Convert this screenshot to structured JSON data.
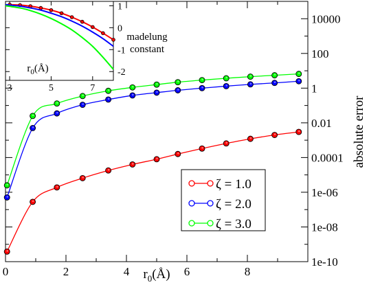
{
  "chart_data": [
    {
      "type": "line",
      "title": "",
      "xlabel": "r0(Å)",
      "xlabel_main": "r",
      "xlabel_sub": "0",
      "xlabel_rest": "(Å)",
      "ylabel": "absolute error",
      "yscale": "log",
      "xlim": [
        0,
        10
      ],
      "ylim": [
        1e-10,
        100000
      ],
      "xticks": [
        0,
        2,
        4,
        6,
        8
      ],
      "xtick_labels": [
        "0",
        "2",
        "4",
        "6",
        "8"
      ],
      "yticks": [
        1e-10,
        1e-08,
        1e-06,
        0.0001,
        0.01,
        1,
        100,
        10000
      ],
      "ytick_labels": [
        "1e-10",
        "1e-08",
        "1e-06",
        "0.0001",
        "0.01",
        "1",
        "100",
        "10000"
      ],
      "grid": false,
      "legend_position": "lower-right",
      "x": [
        0.05,
        0.9,
        1.7,
        2.55,
        3.4,
        4.2,
        5.0,
        5.7,
        6.5,
        7.3,
        8.1,
        8.9,
        9.7
      ],
      "series": [
        {
          "name": "ζ = 1.0",
          "color": "#ff0000",
          "values": [
            3.8e-10,
            2.8e-07,
            1.9e-06,
            6.5e-06,
            1.8e-05,
            4e-05,
            8e-05,
            0.00016,
            0.00033,
            0.00065,
            0.0012,
            0.002,
            0.003
          ]
        },
        {
          "name": "ζ = 2.0",
          "color": "#0000ff",
          "values": [
            5e-07,
            0.005,
            0.035,
            0.11,
            0.22,
            0.38,
            0.55,
            0.75,
            1.0,
            1.3,
            1.65,
            2.0,
            2.5
          ]
        },
        {
          "name": "ζ = 3.0",
          "color": "#00ff00",
          "values": [
            2.5e-06,
            0.025,
            0.13,
            0.35,
            0.7,
            1.1,
            1.6,
            2.2,
            2.9,
            3.7,
            4.6,
            5.5,
            6.6
          ]
        }
      ]
    },
    {
      "type": "line",
      "title": "",
      "xlabel": "r0(Å)",
      "xlabel_main": "r",
      "xlabel_sub": "0",
      "xlabel_rest": "(Å)",
      "ylabel": "madelung constant",
      "ylabel_lines": [
        "madelung",
        "constant"
      ],
      "xlim": [
        2.8,
        8.0
      ],
      "ylim": [
        -2.4,
        1.2
      ],
      "xticks": [
        3,
        5,
        7
      ],
      "xtick_labels": [
        "3",
        "5",
        "7"
      ],
      "yticks": [
        1,
        0,
        -1,
        -2
      ],
      "ytick_labels": [
        "1",
        "0",
        "-1",
        "-2"
      ],
      "grid": false,
      "marked_series": "ζ = 1.0",
      "series": [
        {
          "name": "ζ = 1.0",
          "color": "#ff0000",
          "x": [
            3.0,
            3.5,
            4.0,
            4.5,
            5.0,
            5.5,
            6.0,
            6.5,
            7.0,
            7.5,
            8.0
          ],
          "values": [
            1.05,
            1.03,
            0.98,
            0.9,
            0.8,
            0.66,
            0.48,
            0.27,
            0.03,
            -0.25,
            -0.55
          ]
        },
        {
          "name": "ζ = 2.0",
          "color": "#0000ff",
          "x": [
            2.8,
            3.5,
            4.0,
            4.5,
            5.0,
            5.5,
            6.0,
            6.5,
            7.0,
            7.5,
            8.0
          ],
          "values": [
            1.05,
            0.98,
            0.9,
            0.8,
            0.66,
            0.5,
            0.3,
            0.07,
            -0.2,
            -0.5,
            -0.85
          ]
        },
        {
          "name": "ζ = 3.0",
          "color": "#00ff00",
          "x": [
            2.8,
            3.5,
            4.0,
            4.5,
            5.0,
            5.5,
            6.0,
            6.5,
            7.0,
            7.5,
            8.0
          ],
          "values": [
            1.0,
            0.9,
            0.78,
            0.62,
            0.42,
            0.18,
            -0.1,
            -0.45,
            -0.85,
            -1.35,
            -1.9
          ]
        }
      ]
    }
  ]
}
